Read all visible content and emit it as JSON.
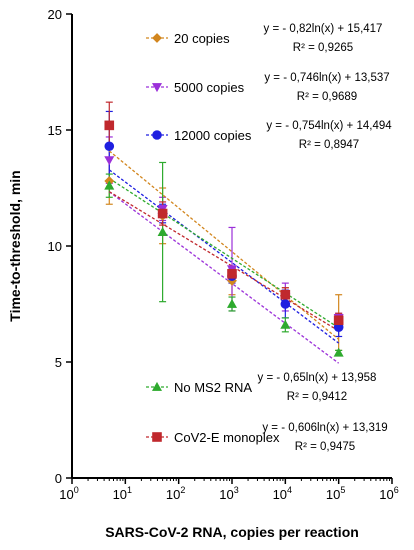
{
  "chart_data": {
    "type": "scatter",
    "x_scale": "log",
    "xlabel": "SARS-CoV-2 RNA, copies per reaction",
    "ylabel": "Time-to-threshold, min",
    "xlim": [
      1,
      1000000
    ],
    "ylim": [
      0,
      20
    ],
    "x_ticks": [
      {
        "value": 1,
        "base": "10",
        "exp": "0"
      },
      {
        "value": 10,
        "base": "10",
        "exp": "1"
      },
      {
        "value": 100,
        "base": "10",
        "exp": "2"
      },
      {
        "value": 1000,
        "base": "10",
        "exp": "3"
      },
      {
        "value": 10000,
        "base": "10",
        "exp": "4"
      },
      {
        "value": 100000,
        "base": "10",
        "exp": "5"
      },
      {
        "value": 1000000,
        "base": "10",
        "exp": "6"
      }
    ],
    "y_ticks": [
      {
        "value": 0,
        "label": "0"
      },
      {
        "value": 5,
        "label": "5"
      },
      {
        "value": 10,
        "label": "10"
      },
      {
        "value": 15,
        "label": "15"
      },
      {
        "value": 20,
        "label": "20"
      }
    ],
    "grid": false,
    "series": [
      {
        "name": "20 copies",
        "color": "#d2861e",
        "marker": "diamond",
        "x": [
          5,
          50,
          1000,
          10000,
          100000
        ],
        "y": [
          12.8,
          11.3,
          8.5,
          7.8,
          6.7
        ],
        "err": [
          1.0,
          1.2,
          0.6,
          0.4,
          1.2
        ],
        "trend": {
          "a": -0.82,
          "b": 15.417
        },
        "equation": "y = - 0,82ln(x) + 15,417",
        "r2": "R² = 0,9265"
      },
      {
        "name": "5000 copies",
        "color": "#9b30d9",
        "marker": "triangle-down",
        "x": [
          5,
          50,
          1000,
          10000,
          100000
        ],
        "y": [
          13.7,
          11.6,
          9.0,
          7.8,
          6.9
        ],
        "err": [
          1.0,
          0.5,
          1.8,
          0.6,
          0.2
        ],
        "trend": {
          "a": -0.746,
          "b": 13.537
        },
        "equation": "y = - 0,746ln(x) + 13,537",
        "r2": "R² = 0,9689"
      },
      {
        "name": "12000 copies",
        "color": "#1f1fe0",
        "marker": "circle",
        "x": [
          5,
          50,
          1000,
          10000,
          100000
        ],
        "y": [
          14.3,
          11.4,
          8.7,
          7.5,
          6.5
        ],
        "err": [
          1.5,
          0.4,
          0.3,
          0.6,
          0.4
        ],
        "trend": {
          "a": -0.754,
          "b": 14.494
        },
        "equation": "y = - 0,754ln(x) + 14,494",
        "r2": "R² = 0,8947"
      },
      {
        "name": "No MS2 RNA",
        "color": "#2eaa2e",
        "marker": "triangle-up",
        "x": [
          5,
          50,
          1000,
          10000,
          100000
        ],
        "y": [
          12.6,
          10.6,
          7.5,
          6.6,
          5.4
        ],
        "err": [
          0.5,
          3.0,
          0.3,
          0.3,
          0.1
        ],
        "trend": {
          "a": -0.65,
          "b": 13.958
        },
        "equation": "y = - 0,65ln(x) + 13,958",
        "r2": "R² = 0,9412"
      },
      {
        "name": "CoV2-E monoplex",
        "color": "#c0282d",
        "marker": "square",
        "x": [
          5,
          50,
          1000,
          10000,
          100000
        ],
        "y": [
          15.2,
          11.4,
          8.8,
          7.9,
          6.8
        ],
        "err": [
          1.0,
          0.5,
          0.3,
          0.3,
          0.3
        ],
        "trend": {
          "a": -0.606,
          "b": 13.319
        },
        "equation": "y = - 0,606ln(x) + 13,319",
        "r2": "R² = 0,9475"
      }
    ]
  }
}
